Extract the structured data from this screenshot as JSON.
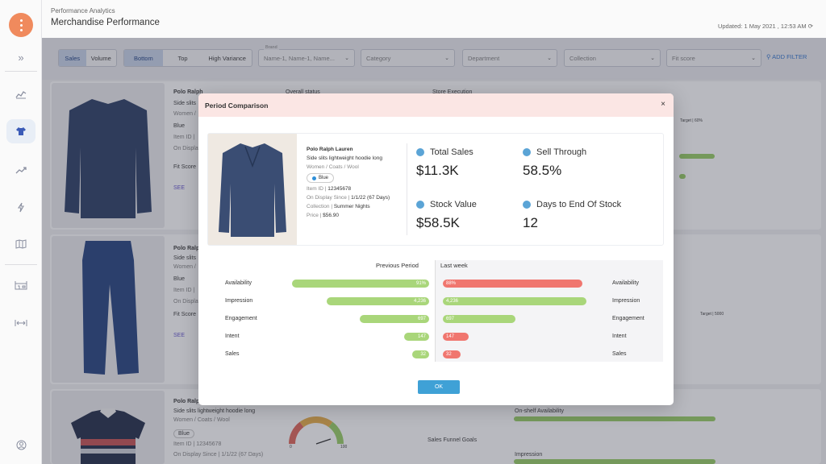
{
  "header": {
    "breadcrumb": "Performance Analytics",
    "title": "Merchandise Performance",
    "updated": "Updated: 1 May 2021 , 12:53 AM"
  },
  "sidebar": {
    "icons": [
      "chevrons-right-icon",
      "line-chart-icon",
      "shirt-icon",
      "trend-icon",
      "lightning-icon",
      "map-icon",
      "store-icon",
      "resize-icon",
      "user-icon"
    ]
  },
  "filters": {
    "metric_toggle": [
      "Sales",
      "Volume"
    ],
    "rank_toggle": [
      "Bottom",
      "Top",
      "High Variance"
    ],
    "brand_label": "Brand",
    "brand_value": "Name-1,  Name-1, Name...",
    "category": "Category",
    "department": "Department",
    "collection": "Collection",
    "fit_score": "Fit score",
    "add_filter": "ADD FILTER"
  },
  "background": {
    "brand": "Polo Ralph",
    "sub": "Side slits",
    "path": "Women /",
    "color": "Blue",
    "item_id": "Item ID |",
    "on_display": "On Display",
    "fit_score": "Fit Score",
    "see": "SEE",
    "overall_status": "Overall status",
    "store_exec": "Store Execution",
    "target_60": "Target | 60%",
    "target_5000": "Target | 5000",
    "row3_name": "Side slits lightweight hoodie long",
    "row3_path": "Women / Coats / Wool",
    "row3_color": "Blue",
    "row3_id": "Item ID | 12345678",
    "row3_display": "On Display Since | 1/1/22 (67 Days)",
    "osa": "On-shelf Availability",
    "funnel": "Sales Funnel Goals",
    "impression": "Impression",
    "gauge_min": "0",
    "gauge_max": "100"
  },
  "modal": {
    "title": "Period Comparison",
    "close": "×",
    "product": {
      "brand": "Polo Ralph Lauren",
      "name": "Side slits lightweight hoodie long",
      "path": "Women / Coats / Wool",
      "color": "Blue",
      "item_id_label": "Item ID | ",
      "item_id": "12345678",
      "on_display_label": "On Display Since | ",
      "on_display": "1/1/22 (67 Days)",
      "collection_label": "Collection | ",
      "collection": "Summer Nights",
      "price_label": "Price | ",
      "price": "$56.90"
    },
    "metrics": {
      "total_sales_label": "Total Sales",
      "total_sales": "$11.3K",
      "sell_through_label": "Sell Through",
      "sell_through": "58.5%",
      "stock_value_label": "Stock Value",
      "stock_value": "$58.5K",
      "days_label": "Days to End Of Stock",
      "days": "12"
    },
    "comparison": {
      "left_title": "Previous Period",
      "right_title": "Last week",
      "rows": [
        {
          "label": "Availability",
          "prev": "91%",
          "last": "88%",
          "prev_frac": 0.99,
          "last_frac": 0.96,
          "last_color": "#f0766f"
        },
        {
          "label": "Impression",
          "prev": "4,236",
          "last": "4,236",
          "prev_frac": 0.74,
          "last_frac": 0.99,
          "last_color": "#a9d67a"
        },
        {
          "label": "Engagement",
          "prev": "697",
          "last": "697",
          "prev_frac": 0.5,
          "last_frac": 0.5,
          "last_color": "#a9d67a"
        },
        {
          "label": "Intent",
          "prev": "147",
          "last": "147",
          "prev_frac": 0.18,
          "last_frac": 0.18,
          "last_color": "#f0766f"
        },
        {
          "label": "Sales",
          "prev": "32",
          "last": "32",
          "prev_frac": 0.12,
          "last_frac": 0.12,
          "last_color": "#f0766f"
        }
      ]
    },
    "ok": "OK"
  }
}
